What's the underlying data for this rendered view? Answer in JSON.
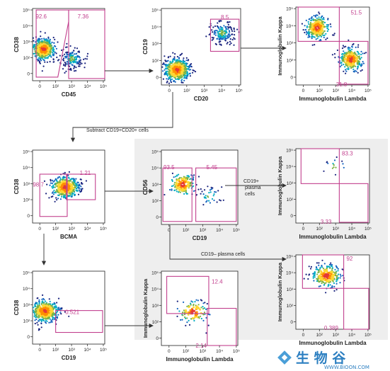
{
  "chart_data": [
    {
      "id": "p1",
      "type": "scatter",
      "xlabel": "CD45",
      "ylabel": "CD38",
      "xticks": [
        "0",
        "10²",
        "10³",
        "10⁴",
        "10⁵"
      ],
      "yticks": [
        "0",
        "10²",
        "10³",
        "10⁴",
        "10⁵"
      ],
      "gates": [
        {
          "label": "92.6"
        },
        {
          "label": "7.36"
        }
      ],
      "populations": [
        {
          "x": 0.3,
          "y": 1.9,
          "n": 520,
          "core": true
        },
        {
          "x": 2.55,
          "y": 1.15,
          "n": 160,
          "core": false
        }
      ]
    },
    {
      "id": "p2",
      "type": "scatter",
      "xlabel": "CD20",
      "ylabel": "CD19",
      "xticks": [
        "0",
        "10²",
        "10³",
        "10⁴",
        "10⁵"
      ],
      "yticks": [
        "0",
        "10²",
        "10³",
        "10⁴",
        "10⁵"
      ],
      "gates": [
        {
          "label": "8.5"
        }
      ],
      "populations": [
        {
          "x": 0.55,
          "y": 0.55,
          "n": 560,
          "core": true
        },
        {
          "x": 3.8,
          "y": 3.3,
          "n": 170,
          "core": false
        }
      ]
    },
    {
      "id": "p3",
      "type": "scatter",
      "xlabel": "Immunoglobulin Lambda",
      "ylabel": "Immunoglobulin Kappa",
      "xticks": [
        "0",
        "10²",
        "10³",
        "10⁴",
        "10⁵"
      ],
      "yticks": [
        "0",
        "10²",
        "10³",
        "10⁴",
        "10⁵"
      ],
      "gates": [
        {
          "label": "51.5"
        },
        {
          "label": "31.8"
        }
      ],
      "populations": [
        {
          "x": 1.1,
          "y": 3.6,
          "n": 300,
          "core": true
        },
        {
          "x": 3.7,
          "y": 1.3,
          "n": 280,
          "core": true
        }
      ]
    },
    {
      "id": "p4",
      "type": "scatter",
      "xlabel": "BCMA",
      "ylabel": "CD38",
      "xticks": [
        "0",
        "10²",
        "10³",
        "10⁴",
        "10⁵"
      ],
      "yticks": [
        "0",
        "10²",
        "10³",
        "10⁴",
        "10⁵"
      ],
      "gates": [
        {
          "label": "98.7"
        },
        {
          "label": "1.21"
        }
      ],
      "populations": [
        {
          "x": 2.0,
          "y": 2.2,
          "n": 460,
          "core": true
        }
      ]
    },
    {
      "id": "p5",
      "type": "scatter",
      "xlabel": "CD19",
      "ylabel": "CD56",
      "xticks": [
        "0",
        "10²",
        "10³",
        "10⁴",
        "10⁵"
      ],
      "yticks": [
        "0",
        "10²",
        "10³",
        "10⁴",
        "10⁵"
      ],
      "gates": [
        {
          "label": "93.5"
        },
        {
          "label": "5.45"
        }
      ],
      "populations": [
        {
          "x": 1.0,
          "y": 2.5,
          "n": 160,
          "core": true
        },
        {
          "x": 3.0,
          "y": 1.6,
          "n": 40,
          "core": false
        }
      ]
    },
    {
      "id": "p6",
      "type": "scatter",
      "xlabel": "Immunoglobulin Lambda",
      "ylabel": "Immunoglobulin Kappa",
      "xticks": [
        "0",
        "10²",
        "10³",
        "10⁴",
        "10⁵"
      ],
      "yticks": [
        "0",
        "10²",
        "10³",
        "10⁴",
        "10⁵"
      ],
      "gates": [
        {
          "label": "83.3"
        },
        {
          "label": "3.33"
        }
      ],
      "populations": [
        {
          "x": 2.4,
          "y": 3.7,
          "n": 16,
          "core": false
        }
      ]
    },
    {
      "id": "p7",
      "type": "scatter",
      "xlabel": "Immunoglobulin Lambda",
      "ylabel": "Immunoglobulin Kappa",
      "xticks": [
        "0",
        "10²",
        "10³",
        "10⁴",
        "10⁵"
      ],
      "yticks": [
        "0",
        "10²",
        "10³",
        "10⁴",
        "10⁵"
      ],
      "gates": [
        {
          "label": "92"
        },
        {
          "label": "0.389"
        }
      ],
      "populations": [
        {
          "x": 1.8,
          "y": 3.5,
          "n": 260,
          "core": true
        }
      ]
    },
    {
      "id": "p8",
      "type": "scatter",
      "xlabel": "CD19",
      "ylabel": "CD38",
      "xticks": [
        "0",
        "10²",
        "10³",
        "10⁴",
        "10⁵"
      ],
      "yticks": [
        "0",
        "10²",
        "10³",
        "10⁴",
        "10⁵"
      ],
      "gates": [
        {
          "label": "0.521"
        }
      ],
      "populations": [
        {
          "x": 0.4,
          "y": 2.0,
          "n": 480,
          "core": true
        }
      ]
    },
    {
      "id": "p9",
      "type": "scatter",
      "xlabel": "Immunoglobulin Lambda",
      "ylabel": "Immunoglobulin Kappa",
      "xticks": [
        "0",
        "10²",
        "10³",
        "10⁴",
        "10⁵"
      ],
      "yticks": [
        "0",
        "10²",
        "10³",
        "10⁴",
        "10⁵"
      ],
      "gates": [
        {
          "label": "12.4"
        },
        {
          "label": "2.14"
        }
      ],
      "populations": [
        {
          "x": 1.8,
          "y": 2.0,
          "n": 110,
          "core": true
        }
      ]
    }
  ],
  "annotations": {
    "subtract": "Subtract CD19+CD20+ cells",
    "plasma1": "CD19+",
    "plasma2": "plasma",
    "plasma3": "cells",
    "cd19neg": "CD19– plasma cells"
  },
  "watermark": {
    "cn": "生 物 谷",
    "en": "WWW.BIOON.COM"
  },
  "colors": {
    "gate": "#c2408e",
    "arrow": "#333333",
    "panel_bg": "#eeeeee",
    "density": [
      "#1a237e",
      "#1565c0",
      "#00acc1",
      "#7cb342",
      "#fdd835",
      "#ff8f00",
      "#e53935"
    ]
  }
}
